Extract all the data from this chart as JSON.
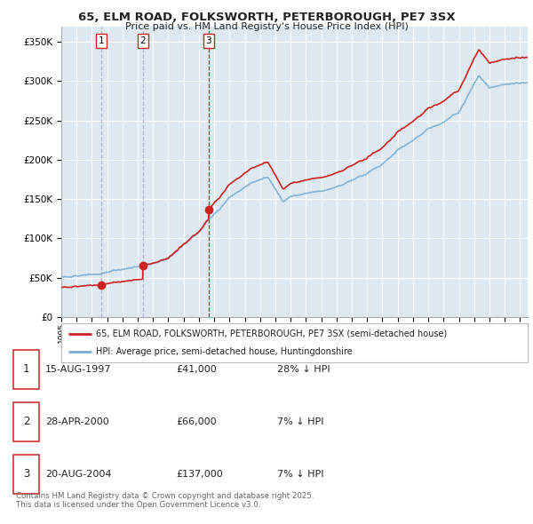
{
  "title_line1": "65, ELM ROAD, FOLKSWORTH, PETERBOROUGH, PE7 3SX",
  "title_line2": "Price paid vs. HM Land Registry's House Price Index (HPI)",
  "ylim": [
    0,
    370000
  ],
  "yticks": [
    0,
    50000,
    100000,
    150000,
    200000,
    250000,
    300000,
    350000
  ],
  "ytick_labels": [
    "£0",
    "£50K",
    "£100K",
    "£150K",
    "£200K",
    "£250K",
    "£300K",
    "£350K"
  ],
  "price_paid_dates": [
    1997.62,
    2000.33,
    2004.63
  ],
  "price_paid_values": [
    41000,
    66000,
    137000
  ],
  "sale_labels": [
    "1",
    "2",
    "3"
  ],
  "vline_colors": [
    "#aaaacc",
    "#aaaacc",
    "#cc0000"
  ],
  "vline_styles": [
    "--",
    "--",
    "--"
  ],
  "red_line_color": "#cc2222",
  "blue_line_color": "#7aadd4",
  "marker_color": "#cc2222",
  "legend_line1": "65, ELM ROAD, FOLKSWORTH, PETERBOROUGH, PE7 3SX (semi-detached house)",
  "legend_line2": "HPI: Average price, semi-detached house, Huntingdonshire",
  "table_data": [
    [
      "1",
      "15-AUG-1997",
      "£41,000",
      "28% ↓ HPI"
    ],
    [
      "2",
      "28-APR-2000",
      "£66,000",
      "7% ↓ HPI"
    ],
    [
      "3",
      "20-AUG-2004",
      "£137,000",
      "7% ↓ HPI"
    ]
  ],
  "footnote": "Contains HM Land Registry data © Crown copyright and database right 2025.\nThis data is licensed under the Open Government Licence v3.0.",
  "chart_bg_color": "#dde8f0",
  "background_color": "#ffffff",
  "grid_color": "#ffffff"
}
